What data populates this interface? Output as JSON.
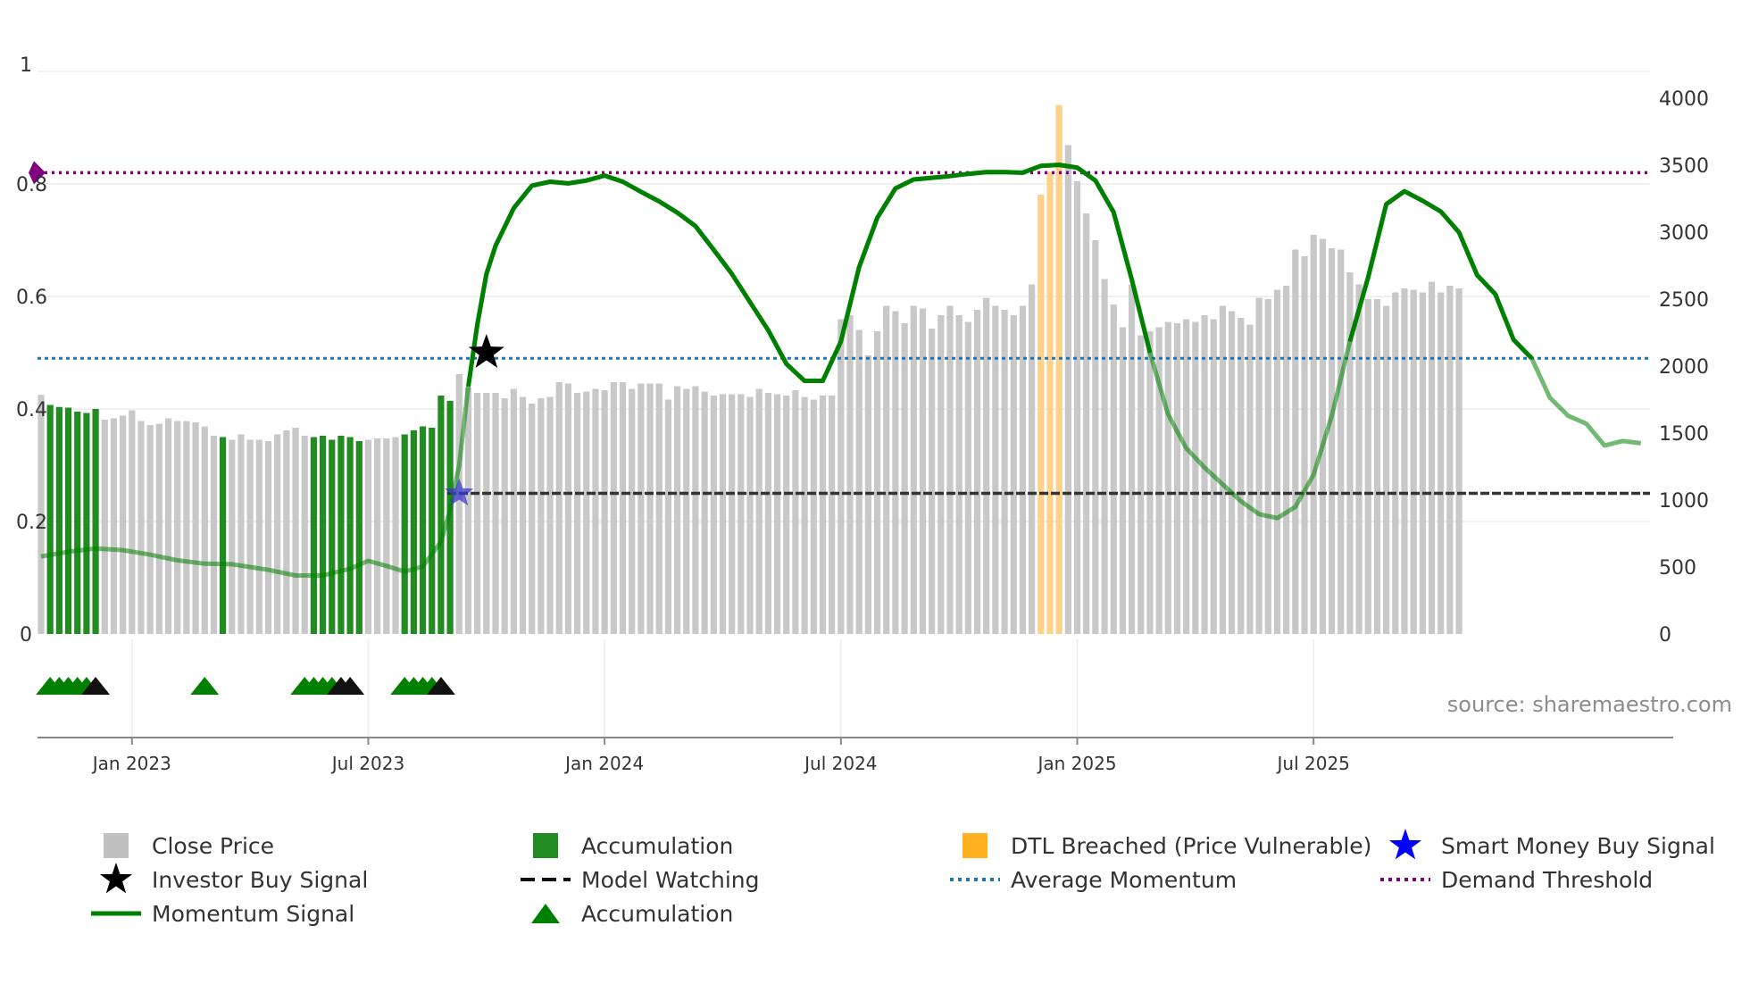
{
  "chart_data": {
    "type": "bar",
    "title": "",
    "source": "source: sharemaestro.com",
    "x_ticks": [
      {
        "label": "Jan 2023",
        "week": 10
      },
      {
        "label": "Jul 2023",
        "week": 36
      },
      {
        "label": "Jan 2024",
        "week": 62
      },
      {
        "label": "Jul 2024",
        "week": 88
      },
      {
        "label": "Jan 2025",
        "week": 114
      },
      {
        "label": "Jul 2025",
        "week": 140
      }
    ],
    "left_axis": {
      "min": 0,
      "max": 1,
      "ticks": [
        "0",
        "0.2",
        "0.4",
        "0.6",
        "0.8",
        "1"
      ]
    },
    "right_axis": {
      "min": 0,
      "max": 4000,
      "ticks": [
        "0",
        "500",
        "1000",
        "1500",
        "2000",
        "2500",
        "3000",
        "3500",
        "4000"
      ]
    },
    "colors": {
      "close": "#c8c8c8",
      "accumulation": "#228b22",
      "dtl": "#ffd08a",
      "momentum": "#008000",
      "average": "#1f77b4",
      "demand": "#800080",
      "model": "#333333",
      "triangle_green": "#008000",
      "triangle_black": "#111111",
      "star_black": "#000000",
      "star_blue": "#3a3acd"
    },
    "close_price": [
      1785,
      1710,
      1695,
      1690,
      1660,
      1650,
      1680,
      1600,
      1610,
      1630,
      1670,
      1590,
      1560,
      1570,
      1610,
      1590,
      1590,
      1580,
      1550,
      1480,
      1470,
      1450,
      1490,
      1450,
      1450,
      1440,
      1490,
      1520,
      1540,
      1480,
      1470,
      1480,
      1450,
      1480,
      1470,
      1440,
      1450,
      1460,
      1460,
      1470,
      1490,
      1520,
      1550,
      1540,
      1780,
      1740,
      1940,
      1840,
      1800,
      1800,
      1800,
      1760,
      1830,
      1770,
      1720,
      1760,
      1770,
      1880,
      1870,
      1800,
      1810,
      1830,
      1820,
      1880,
      1880,
      1830,
      1870,
      1870,
      1870,
      1750,
      1850,
      1830,
      1850,
      1810,
      1780,
      1790,
      1790,
      1790,
      1770,
      1830,
      1800,
      1790,
      1780,
      1820,
      1770,
      1750,
      1780,
      1780,
      2350,
      2380,
      2270,
      2080,
      2260,
      2450,
      2410,
      2320,
      2450,
      2430,
      2280,
      2380,
      2450,
      2380,
      2330,
      2420,
      2510,
      2450,
      2420,
      2380,
      2450,
      2610,
      3280,
      3450,
      3950,
      3650,
      3380,
      3140,
      2940,
      2650,
      2460,
      2290,
      2610,
      2230,
      2260,
      2290,
      2330,
      2320,
      2350,
      2330,
      2380,
      2350,
      2450,
      2410,
      2360,
      2310,
      2510,
      2500,
      2570,
      2600,
      2870,
      2820,
      2980,
      2950,
      2880,
      2870,
      2700,
      2610,
      2500,
      2500,
      2450,
      2550,
      2580,
      2570,
      2550,
      2630,
      2550,
      2600,
      2580
    ],
    "accumulation_weeks": [
      1,
      2,
      3,
      4,
      5,
      6,
      20,
      30,
      31,
      32,
      33,
      34,
      35,
      40,
      41,
      42,
      43,
      44,
      45
    ],
    "dtl_weeks": [
      110,
      111,
      112
    ],
    "momentum": [
      [
        0,
        0.138
      ],
      [
        3,
        0.146
      ],
      [
        6,
        0.152
      ],
      [
        9,
        0.149
      ],
      [
        12,
        0.141
      ],
      [
        15,
        0.131
      ],
      [
        18,
        0.125
      ],
      [
        21,
        0.124
      ],
      [
        25,
        0.114
      ],
      [
        28,
        0.104
      ],
      [
        31,
        0.104
      ],
      [
        34,
        0.116
      ],
      [
        36,
        0.13
      ],
      [
        38,
        0.121
      ],
      [
        40,
        0.111
      ],
      [
        42,
        0.12
      ],
      [
        44,
        0.164
      ],
      [
        45,
        0.22
      ],
      [
        46,
        0.3
      ],
      [
        47,
        0.44
      ],
      [
        48,
        0.55
      ],
      [
        49,
        0.64
      ],
      [
        50,
        0.69
      ],
      [
        52,
        0.757
      ],
      [
        54,
        0.797
      ],
      [
        56,
        0.804
      ],
      [
        58,
        0.801
      ],
      [
        60,
        0.806
      ],
      [
        62,
        0.815
      ],
      [
        64,
        0.804
      ],
      [
        66,
        0.786
      ],
      [
        68,
        0.769
      ],
      [
        70,
        0.749
      ],
      [
        72,
        0.725
      ],
      [
        74,
        0.683
      ],
      [
        76,
        0.64
      ],
      [
        78,
        0.59
      ],
      [
        80,
        0.54
      ],
      [
        82,
        0.48
      ],
      [
        84,
        0.45
      ],
      [
        86,
        0.45
      ],
      [
        88,
        0.52
      ],
      [
        90,
        0.652
      ],
      [
        92,
        0.74
      ],
      [
        94,
        0.792
      ],
      [
        96,
        0.808
      ],
      [
        98,
        0.811
      ],
      [
        100,
        0.814
      ],
      [
        102,
        0.818
      ],
      [
        104,
        0.821
      ],
      [
        106,
        0.821
      ],
      [
        108,
        0.82
      ],
      [
        110,
        0.832
      ],
      [
        112,
        0.834
      ],
      [
        114,
        0.829
      ],
      [
        116,
        0.806
      ],
      [
        118,
        0.75
      ],
      [
        120,
        0.63
      ],
      [
        122,
        0.5
      ],
      [
        124,
        0.39
      ],
      [
        126,
        0.33
      ],
      [
        128,
        0.296
      ],
      [
        130,
        0.266
      ],
      [
        132,
        0.236
      ],
      [
        134,
        0.213
      ],
      [
        136,
        0.206
      ],
      [
        138,
        0.226
      ],
      [
        140,
        0.283
      ],
      [
        142,
        0.388
      ],
      [
        144,
        0.52
      ],
      [
        146,
        0.634
      ],
      [
        148,
        0.764
      ],
      [
        150,
        0.787
      ],
      [
        152,
        0.77
      ],
      [
        154,
        0.751
      ],
      [
        156,
        0.714
      ],
      [
        158,
        0.638
      ],
      [
        160,
        0.604
      ],
      [
        162,
        0.523
      ],
      [
        164,
        0.49
      ],
      [
        166,
        0.42
      ],
      [
        168,
        0.388
      ],
      [
        170,
        0.374
      ],
      [
        172,
        0.335
      ],
      [
        174,
        0.343
      ],
      [
        176,
        0.339
      ]
    ],
    "average_momentum": 0.49,
    "demand_threshold": 0.82,
    "model_watching_level": 0.25,
    "investor_buy_signal": {
      "week": 49,
      "value": 0.5
    },
    "smart_money_buy_signal": {
      "week": 46,
      "value": 0.25
    },
    "accumulation_triangles": [
      {
        "week": 1,
        "color": "green"
      },
      {
        "week": 2,
        "color": "green"
      },
      {
        "week": 3,
        "color": "green"
      },
      {
        "week": 4,
        "color": "green"
      },
      {
        "week": 5,
        "color": "green"
      },
      {
        "week": 6,
        "color": "black"
      },
      {
        "week": 18,
        "color": "green"
      },
      {
        "week": 29,
        "color": "green"
      },
      {
        "week": 30,
        "color": "green"
      },
      {
        "week": 31,
        "color": "green"
      },
      {
        "week": 32,
        "color": "green"
      },
      {
        "week": 33,
        "color": "black"
      },
      {
        "week": 34,
        "color": "black"
      },
      {
        "week": 40,
        "color": "green"
      },
      {
        "week": 41,
        "color": "green"
      },
      {
        "week": 42,
        "color": "green"
      },
      {
        "week": 43,
        "color": "green"
      },
      {
        "week": 44,
        "color": "black"
      }
    ],
    "legend": [
      {
        "label": "Close Price",
        "symbol": "square",
        "color": "#c0c0c0"
      },
      {
        "label": "Accumulation",
        "symbol": "square",
        "color": "#228b22"
      },
      {
        "label": "DTL Breached (Price Vulnerable)",
        "symbol": "square",
        "color": "#ffb020"
      },
      {
        "label": "Smart Money Buy Signal",
        "symbol": "star",
        "color": "#0000ff"
      },
      {
        "label": "Investor Buy Signal",
        "symbol": "star",
        "color": "#000000"
      },
      {
        "label": "Model Watching",
        "symbol": "dash",
        "color": "#111111"
      },
      {
        "label": "Average Momentum",
        "symbol": "dot",
        "color": "#1f77b4"
      },
      {
        "label": "Demand Threshold",
        "symbol": "dot",
        "color": "#800080"
      },
      {
        "label": "Momentum Signal",
        "symbol": "line",
        "color": "#008000"
      },
      {
        "label": "Accumulation",
        "symbol": "triangle",
        "color": "#008000"
      }
    ]
  }
}
